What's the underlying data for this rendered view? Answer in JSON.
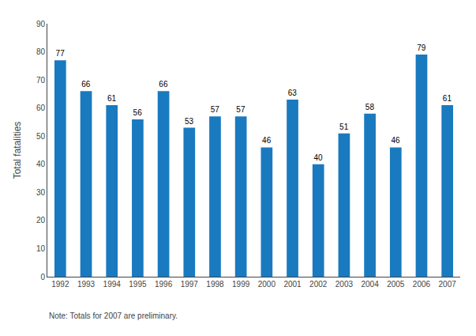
{
  "chart_data": {
    "type": "bar",
    "categories": [
      "1992",
      "1993",
      "1994",
      "1995",
      "1996",
      "1997",
      "1998",
      "1999",
      "2000",
      "2001",
      "2002",
      "2003",
      "2004",
      "2005",
      "2006",
      "2007"
    ],
    "values": [
      77,
      66,
      61,
      56,
      66,
      53,
      57,
      57,
      46,
      63,
      40,
      51,
      58,
      46,
      79,
      61
    ],
    "color": "#1a7abf",
    "ylabel": "Total fatalities",
    "ylim": [
      0,
      90
    ],
    "yticks": [
      0,
      10,
      20,
      30,
      40,
      50,
      60,
      70,
      80,
      90
    ],
    "grid": false,
    "data_labels": true,
    "annotations": [
      "Note: Totals for 2007 are preliminary."
    ]
  }
}
